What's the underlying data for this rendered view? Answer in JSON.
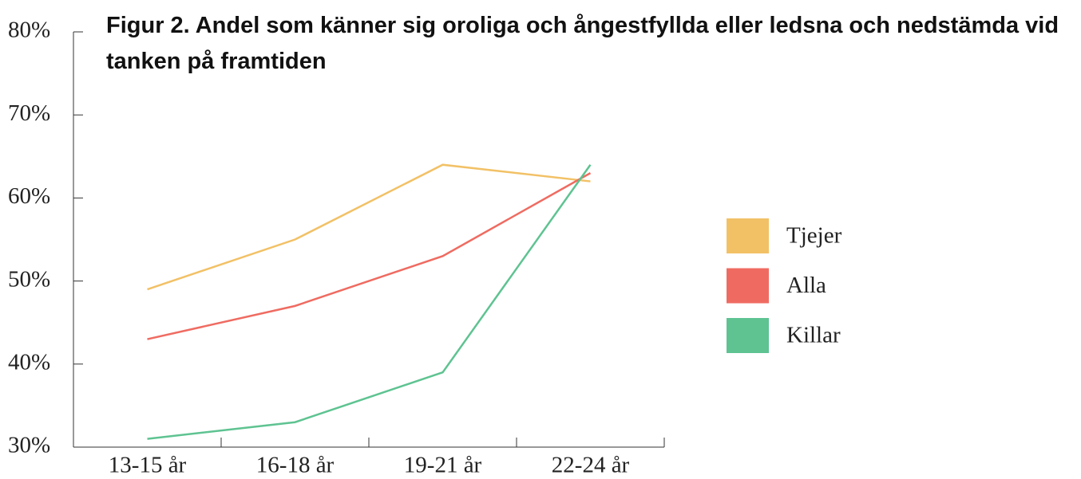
{
  "chart_data": {
    "type": "line",
    "title": "Figur 2. Andel som känner sig oroliga och ångestfyllda eller ledsna och nedstämda vid tanken på framtiden",
    "categories": [
      "13-15 år",
      "16-18 år",
      "19-21 år",
      "22-24 år"
    ],
    "series": [
      {
        "name": "Tjejer",
        "color": "#f2c166",
        "values": [
          49,
          55,
          64,
          62
        ]
      },
      {
        "name": "Alla",
        "color": "#ef6b61",
        "values": [
          43,
          47,
          53,
          63
        ]
      },
      {
        "name": "Killar",
        "color": "#5ec391",
        "values": [
          31,
          33,
          39,
          64
        ]
      }
    ],
    "ylim": [
      30,
      80
    ],
    "yticks": [
      {
        "value": 30,
        "label": "30%"
      },
      {
        "value": 40,
        "label": "40%"
      },
      {
        "value": 50,
        "label": "50%"
      },
      {
        "value": 60,
        "label": "60%"
      },
      {
        "value": 70,
        "label": "70%"
      },
      {
        "value": 80,
        "label": "80%"
      }
    ],
    "grid": false,
    "legend": "right"
  }
}
